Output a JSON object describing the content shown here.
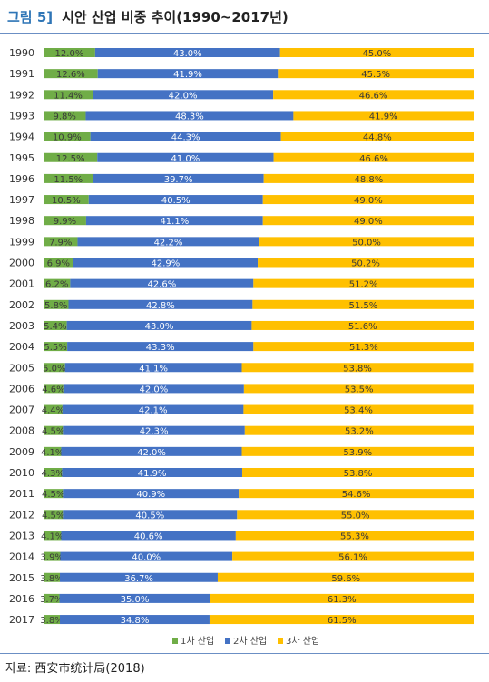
{
  "figure": {
    "label": "그림 5]",
    "title": "시안 산업 비중 추이(1990~2017년)",
    "source": "자료: 西安市统计局(2018)"
  },
  "chart_data": {
    "type": "bar",
    "orientation": "horizontal",
    "stacked": "percent",
    "title": "시안 산업 비중 추이(1990~2017년)",
    "xlabel": "",
    "ylabel": "",
    "xlim": [
      0,
      100
    ],
    "grid": false,
    "legend": "bottom",
    "categories": [
      "1990",
      "1991",
      "1992",
      "1993",
      "1994",
      "1995",
      "1996",
      "1997",
      "1998",
      "1999",
      "2000",
      "2001",
      "2002",
      "2003",
      "2004",
      "2005",
      "2006",
      "2007",
      "2008",
      "2009",
      "2010",
      "2011",
      "2012",
      "2013",
      "2014",
      "2015",
      "2016",
      "2017"
    ],
    "series": [
      {
        "name": "1차 산업",
        "color": "#70ad47",
        "values": [
          12.0,
          12.6,
          11.4,
          9.8,
          10.9,
          12.5,
          11.5,
          10.5,
          9.9,
          7.9,
          6.9,
          6.2,
          5.8,
          5.4,
          5.5,
          5.0,
          4.6,
          4.4,
          4.5,
          4.1,
          4.3,
          4.5,
          4.5,
          4.1,
          3.9,
          3.8,
          3.7,
          3.8
        ]
      },
      {
        "name": "2차 산업",
        "color": "#4472c4",
        "values": [
          43.0,
          41.9,
          42.0,
          48.3,
          44.3,
          41.0,
          39.7,
          40.5,
          41.1,
          42.2,
          42.9,
          42.6,
          42.8,
          43.0,
          43.3,
          41.1,
          42.0,
          42.1,
          42.3,
          42.0,
          41.9,
          40.9,
          40.5,
          40.6,
          40.0,
          36.7,
          35.0,
          34.8
        ]
      },
      {
        "name": "3차 산업",
        "color": "#ffc000",
        "values": [
          45.0,
          45.5,
          46.6,
          41.9,
          44.8,
          46.6,
          48.8,
          49.0,
          49.0,
          50.0,
          50.2,
          51.2,
          51.5,
          51.6,
          51.3,
          53.8,
          53.5,
          53.4,
          53.2,
          53.9,
          53.8,
          54.6,
          55.0,
          55.3,
          56.1,
          59.6,
          61.3,
          61.5
        ]
      }
    ]
  }
}
